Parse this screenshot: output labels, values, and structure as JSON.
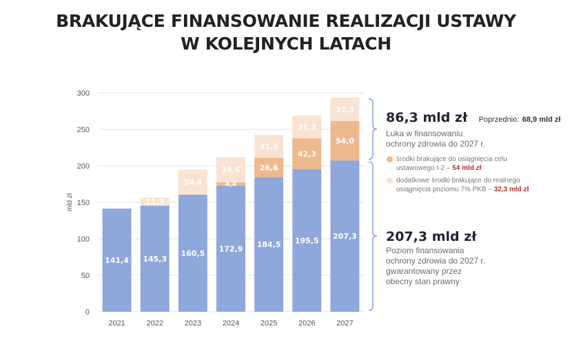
{
  "title_line1": "BRAKUJĄCE FINANSOWANIE REALIZACJI USTAWY",
  "title_line2": "W KOLEJNYCH LATACH",
  "colors": {
    "base": "#8fa8db",
    "gap_t2": "#eeb98d",
    "gap_extra": "#f9e3d2",
    "axis_text": "#555555",
    "bracket": "#8fa8db"
  },
  "chart_data": {
    "type": "bar",
    "stacked": true,
    "categories": [
      "2021",
      "2022",
      "2023",
      "2024",
      "2025",
      "2026",
      "2027"
    ],
    "series": [
      {
        "values": [
          141.4,
          145.3,
          160.5,
          172.9,
          184.5,
          195.5,
          207.3
        ],
        "labels": [
          "141,4",
          "145,3",
          "160,5",
          "172,9",
          "184,5",
          "195,5",
          "207,3"
        ]
      },
      {
        "values": [
          0,
          0,
          0,
          4.4,
          26.6,
          42.3,
          54.0
        ],
        "labels": [
          "",
          "",
          "",
          "4,4",
          "26,6",
          "42,3",
          "54,0"
        ]
      },
      {
        "values": [
          0,
          11.3,
          34.4,
          34.6,
          31.5,
          31.2,
          32.3
        ],
        "labels": [
          "",
          "11,3",
          "34,4",
          "34,6",
          "31,5",
          "31,2",
          "32,3"
        ]
      }
    ],
    "ylabel": "mld zł",
    "ylim": [
      0,
      300
    ],
    "yticks": [
      0,
      50,
      100,
      150,
      200,
      250,
      300
    ],
    "grid": true,
    "gap_bracket": [
      207.3,
      293.6
    ],
    "base_bracket": [
      0,
      207.3
    ]
  },
  "notes": {
    "gap_amount": "86,3 mld zł",
    "previous_label": "Poprzednio:",
    "previous_value": "68,9 mld zł",
    "gap_desc_line1": "Luka w finansowaniu",
    "gap_desc_line2": "ochrony zdrowia do 2027 r.",
    "legend1_line1": "środki brakujące do osiągnięcia celu",
    "legend1_line2": "ustawowego t-2 –",
    "legend1_value": "54 mld zł",
    "legend2_line1": "dodatkowe środki brakujące do realnego",
    "legend2_line2": "osiągnięcia poziomu 7% PKB –",
    "legend2_value": "32,3 mld zł",
    "base_amount": "207,3 mld zł",
    "base_desc_line1": "Poziom finansowania",
    "base_desc_line2": "ochrony zdrowia do 2027 r.",
    "base_desc_line3": "gwarantowany przez",
    "base_desc_line4": "obecny stan prawny"
  }
}
